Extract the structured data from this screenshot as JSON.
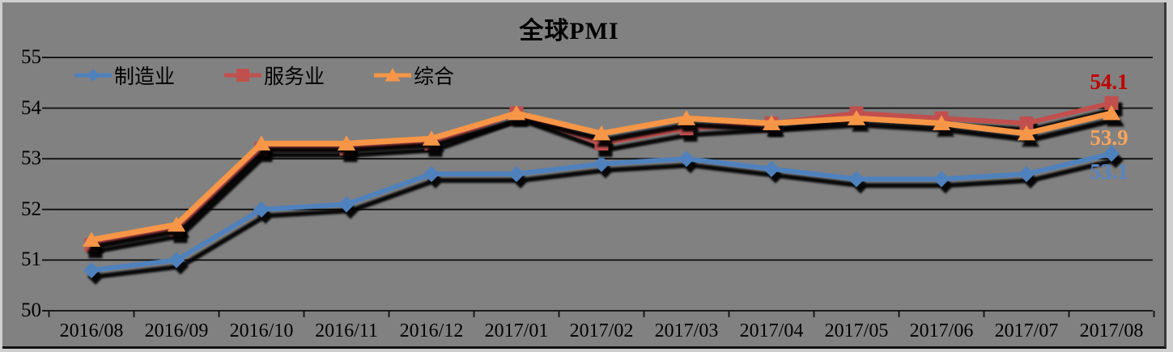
{
  "title": "全球PMI",
  "colors": {
    "background": "#818181",
    "frame_light": "#cfcfcf",
    "gridline": "#0d0d0d",
    "axis_text": "#000000"
  },
  "chart_data": {
    "type": "line",
    "title": "全球PMI",
    "categories": [
      "2016/08",
      "2016/09",
      "2016/10",
      "2016/11",
      "2016/12",
      "2017/01",
      "2017/02",
      "2017/03",
      "2017/04",
      "2017/05",
      "2017/06",
      "2017/07",
      "2017/08"
    ],
    "series": [
      {
        "name": "制造业",
        "marker": "diamond",
        "color": "#4F81BD",
        "values": [
          50.8,
          51.0,
          52.0,
          52.1,
          52.7,
          52.7,
          52.9,
          53.0,
          52.8,
          52.6,
          52.6,
          52.7,
          53.1
        ],
        "end_label": {
          "text": "53.1",
          "color": "#5585C6"
        }
      },
      {
        "name": "服务业",
        "marker": "square",
        "color": "#C0504D",
        "values": [
          51.3,
          51.6,
          53.2,
          53.2,
          53.3,
          53.9,
          53.3,
          53.6,
          53.7,
          53.9,
          53.8,
          53.7,
          54.1
        ],
        "end_label": {
          "text": "54.1",
          "color": "#C00000"
        }
      },
      {
        "name": "综合",
        "marker": "triangle",
        "color": "#F79646",
        "values": [
          51.4,
          51.7,
          53.3,
          53.3,
          53.4,
          53.9,
          53.5,
          53.8,
          53.7,
          53.8,
          53.7,
          53.5,
          53.9
        ],
        "end_label": {
          "text": "53.9",
          "color": "#FAA55C"
        }
      }
    ],
    "ylim": [
      50,
      55
    ],
    "yticks": [
      50,
      51,
      52,
      53,
      54,
      55
    ],
    "grid": true,
    "legend_position": "top-left",
    "legend_entries": [
      "制造业",
      "服务业",
      "综合"
    ]
  }
}
